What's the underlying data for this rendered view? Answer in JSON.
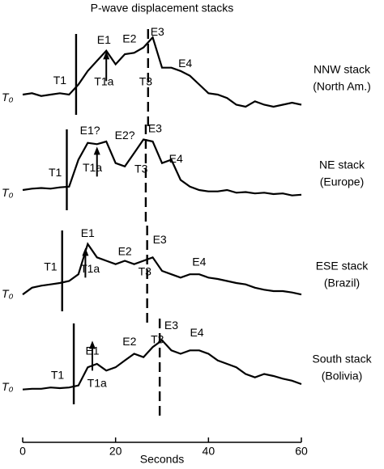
{
  "chart_data": {
    "type": "line",
    "title": "P-wave displacement stacks",
    "xlabel": "Seconds",
    "xlim": [
      0,
      60
    ],
    "xticks": [
      0,
      20,
      40,
      60
    ],
    "ylim": [
      -0.2,
      1
    ],
    "color": "#000000",
    "x": [
      0,
      2,
      4,
      6,
      8,
      10,
      12,
      14,
      16,
      18,
      20,
      22,
      24,
      26,
      28,
      30,
      32,
      34,
      36,
      38,
      40,
      42,
      44,
      46,
      48,
      50,
      52,
      54,
      56,
      58,
      60
    ],
    "panels": [
      {
        "name": "NNW stack",
        "region": "(North Am.)",
        "origin": "T₀",
        "markers": [
          11.5,
          27
        ],
        "arrow_x": 18,
        "values": [
          0.1,
          0.12,
          0.08,
          0.1,
          0.12,
          0.1,
          0.25,
          0.45,
          0.6,
          0.75,
          0.55,
          0.7,
          0.72,
          0.8,
          0.95,
          0.5,
          0.5,
          0.45,
          0.38,
          0.25,
          0.12,
          0.1,
          0.05,
          -0.05,
          -0.08,
          0,
          -0.05,
          -0.08,
          -0.05,
          -0.02,
          -0.05
        ],
        "labels": [
          {
            "text": "T1",
            "x": 8,
            "y": 0.3
          },
          {
            "text": "T1a",
            "x": 17.5,
            "y": 0.28
          },
          {
            "text": "E1",
            "x": 17.5,
            "y": 0.9
          },
          {
            "text": "E2",
            "x": 23,
            "y": 0.92
          },
          {
            "text": "E3",
            "x": 29,
            "y": 1.02
          },
          {
            "text": "T3",
            "x": 26.5,
            "y": 0.28
          },
          {
            "text": "E4",
            "x": 35,
            "y": 0.55
          }
        ]
      },
      {
        "name": "NE stack",
        "region": "(Europe)",
        "origin": "T₀",
        "markers": [
          9.5,
          26.5
        ],
        "arrow_x": 16,
        "values": [
          0.1,
          0.12,
          0.13,
          0.12,
          0.14,
          0.15,
          0.55,
          0.8,
          0.78,
          0.82,
          0.5,
          0.45,
          0.65,
          0.85,
          0.82,
          0.5,
          0.55,
          0.25,
          0.15,
          0.1,
          0.08,
          0.08,
          0.1,
          0.06,
          0.07,
          0.05,
          0.06,
          0.04,
          0.05,
          0.02,
          0.03
        ],
        "labels": [
          {
            "text": "T1",
            "x": 7,
            "y": 0.35
          },
          {
            "text": "T1a",
            "x": 15,
            "y": 0.42
          },
          {
            "text": "E1?",
            "x": 14.5,
            "y": 0.97
          },
          {
            "text": "E2?",
            "x": 22,
            "y": 0.9
          },
          {
            "text": "E3",
            "x": 28.5,
            "y": 1.0
          },
          {
            "text": "T3",
            "x": 25.5,
            "y": 0.4
          },
          {
            "text": "E4",
            "x": 33,
            "y": 0.55
          }
        ]
      },
      {
        "name": "ESE stack",
        "region": "(Brazil)",
        "origin": "T₀",
        "markers": [
          8.5,
          26.8
        ],
        "arrow_x": 13.5,
        "values": [
          0.05,
          0.15,
          0.18,
          0.2,
          0.22,
          0.25,
          0.35,
          0.8,
          0.6,
          0.55,
          0.5,
          0.55,
          0.5,
          0.55,
          0.6,
          0.4,
          0.35,
          0.3,
          0.35,
          0.35,
          0.3,
          0.28,
          0.25,
          0.22,
          0.2,
          0.15,
          0.12,
          0.1,
          0.1,
          0.08,
          0.05
        ],
        "labels": [
          {
            "text": "T1",
            "x": 6,
            "y": 0.45
          },
          {
            "text": "T1a",
            "x": 14.5,
            "y": 0.42
          },
          {
            "text": "E1",
            "x": 14,
            "y": 0.95
          },
          {
            "text": "E2",
            "x": 22,
            "y": 0.68
          },
          {
            "text": "E3",
            "x": 29.5,
            "y": 0.85
          },
          {
            "text": "T3",
            "x": 26.3,
            "y": 0.38
          },
          {
            "text": "E4",
            "x": 38,
            "y": 0.52
          }
        ]
      },
      {
        "name": "South stack",
        "region": "(Bolivia)",
        "origin": "T₀",
        "markers": [
          11,
          29.5
        ],
        "arrow_x": 15,
        "values": [
          0.02,
          0.03,
          0.03,
          0.05,
          0.04,
          0.05,
          0.08,
          0.35,
          0.4,
          0.3,
          0.35,
          0.45,
          0.55,
          0.5,
          0.65,
          0.75,
          0.6,
          0.55,
          0.6,
          0.6,
          0.55,
          0.45,
          0.4,
          0.35,
          0.25,
          0.2,
          0.25,
          0.22,
          0.18,
          0.15,
          0.1
        ],
        "labels": [
          {
            "text": "T1",
            "x": 7.5,
            "y": 0.22
          },
          {
            "text": "T1a",
            "x": 16,
            "y": 0.1
          },
          {
            "text": "E1",
            "x": 15,
            "y": 0.58
          },
          {
            "text": "E2",
            "x": 23,
            "y": 0.72
          },
          {
            "text": "E3",
            "x": 32,
            "y": 0.96
          },
          {
            "text": "T3",
            "x": 29,
            "y": 0.75
          },
          {
            "text": "E4",
            "x": 37.5,
            "y": 0.85
          }
        ]
      }
    ]
  }
}
